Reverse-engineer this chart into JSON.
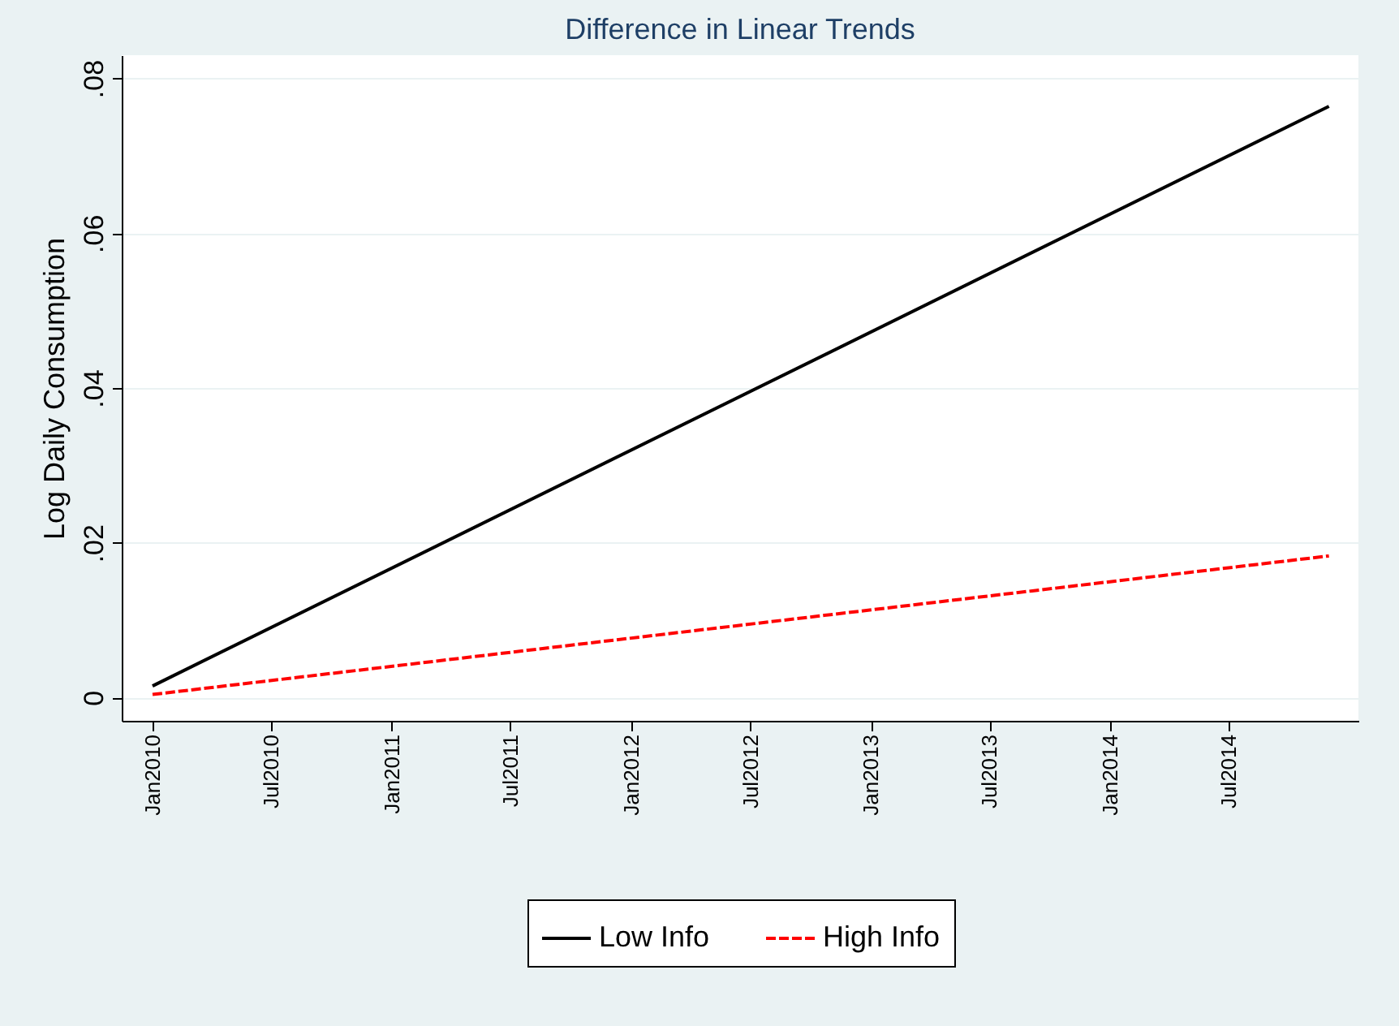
{
  "chart_data": {
    "type": "line",
    "title": "Difference in Linear Trends",
    "ylabel": "Log Daily Consumption",
    "x": [
      "2010-01",
      "2014-12"
    ],
    "series": [
      {
        "name": "Low Info",
        "color": "#000000",
        "line_style": "solid",
        "values": [
          0.0015,
          0.0764
        ]
      },
      {
        "name": "High Info",
        "color": "#ff0000",
        "line_style": "dashed",
        "values": [
          0.0004,
          0.0183
        ]
      }
    ],
    "xlim": [
      "2009-11-15",
      "2015-01-15"
    ],
    "xticks": [
      {
        "value": "2010-01",
        "label": "Jan2010"
      },
      {
        "value": "2010-07",
        "label": "Jul2010"
      },
      {
        "value": "2011-01",
        "label": "Jan2011"
      },
      {
        "value": "2011-07",
        "label": "Jul2011"
      },
      {
        "value": "2012-01",
        "label": "Jan2012"
      },
      {
        "value": "2012-07",
        "label": "Jul2012"
      },
      {
        "value": "2013-01",
        "label": "Jan2013"
      },
      {
        "value": "2013-07",
        "label": "Jul2013"
      },
      {
        "value": "2014-01",
        "label": "Jan2014"
      },
      {
        "value": "2014-07",
        "label": "Jul2014"
      }
    ],
    "ylim": [
      -0.003,
      0.083
    ],
    "yticks": [
      0,
      {
        "value": 0.02,
        "label": ".02"
      },
      {
        "value": 0.04,
        "label": ".04"
      },
      {
        "value": 0.06,
        "label": ".06"
      },
      {
        "value": 0.08,
        "label": ".08"
      }
    ],
    "grid": "y",
    "legend": "bottom"
  }
}
